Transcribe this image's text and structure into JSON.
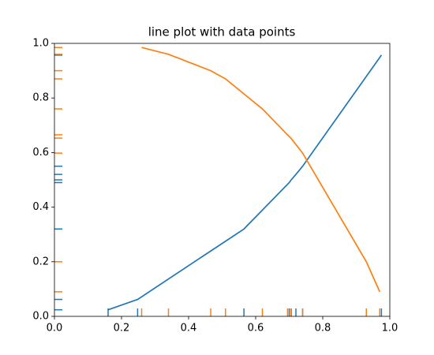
{
  "chart_data": {
    "type": "line",
    "title": "line plot with data points",
    "xlim": [
      0,
      1
    ],
    "ylim": [
      0,
      1
    ],
    "xticks": [
      {
        "value": 0,
        "label": "0.0"
      },
      {
        "value": 0.2,
        "label": "0.2"
      },
      {
        "value": 0.4,
        "label": "0.4"
      },
      {
        "value": 0.6,
        "label": "0.6"
      },
      {
        "value": 0.8,
        "label": "0.8"
      },
      {
        "value": 1,
        "label": "1.0"
      }
    ],
    "yticks": [
      {
        "value": 0,
        "label": "0.0"
      },
      {
        "value": 0.2,
        "label": "0.2"
      },
      {
        "value": 0.4,
        "label": "0.4"
      },
      {
        "value": 0.6,
        "label": "0.6"
      },
      {
        "value": 0.8,
        "label": "0.8"
      },
      {
        "value": 1,
        "label": "1.0"
      }
    ],
    "rug": true,
    "series": [
      {
        "color": "#1f77b4",
        "x": [
          0.16,
          0.248,
          0.565,
          0.7,
          0.706,
          0.72,
          0.74,
          0.975
        ],
        "y": [
          0.024,
          0.062,
          0.32,
          0.49,
          0.5,
          0.52,
          0.55,
          0.957
        ]
      },
      {
        "color": "#ff7f0e",
        "x": [
          0.26,
          0.34,
          0.466,
          0.51,
          0.62,
          0.695,
          0.705,
          0.74,
          0.93,
          0.97
        ],
        "y": [
          0.985,
          0.96,
          0.9,
          0.87,
          0.76,
          0.665,
          0.653,
          0.598,
          0.2,
          0.09
        ]
      }
    ]
  }
}
